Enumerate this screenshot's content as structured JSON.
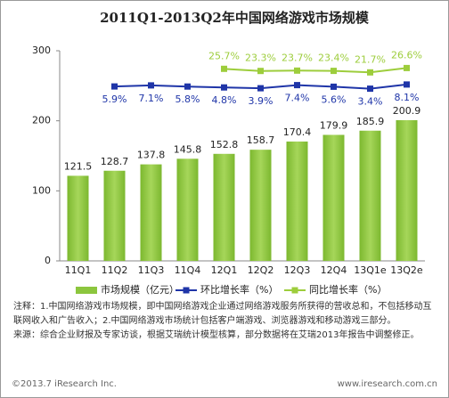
{
  "chart_data": {
    "type": "bar",
    "title": "2011Q1-2013Q2年中国网络游戏市场规模",
    "categories": [
      "11Q1",
      "11Q2",
      "11Q3",
      "11Q4",
      "12Q1",
      "12Q2",
      "12Q3",
      "12Q4",
      "13Q1e",
      "13Q2e"
    ],
    "series": [
      {
        "name": "市场规模（亿元）",
        "type": "bar",
        "color": "#8cc63e",
        "values": [
          121.5,
          128.7,
          137.8,
          145.8,
          152.8,
          158.7,
          170.4,
          179.9,
          185.9,
          200.9
        ]
      },
      {
        "name": "环比增长率（%）",
        "type": "line",
        "axis": "y2",
        "color": "#1f35a8",
        "values": [
          null,
          5.9,
          7.1,
          5.8,
          4.8,
          3.9,
          7.4,
          5.6,
          3.4,
          8.1
        ],
        "value_labels": [
          null,
          "5.9%",
          "7.1%",
          "5.8%",
          "4.8%",
          "3.9%",
          "7.4%",
          "5.6%",
          "3.4%",
          "8.1%"
        ]
      },
      {
        "name": "同比增长率（%）",
        "type": "line",
        "axis": "y2",
        "color": "#9dcd3c",
        "values": [
          null,
          null,
          null,
          null,
          25.7,
          23.3,
          23.7,
          23.4,
          21.7,
          26.6
        ],
        "value_labels": [
          null,
          null,
          null,
          null,
          "25.7%",
          "23.3%",
          "23.7%",
          "23.4%",
          "21.7%",
          "26.6%"
        ]
      }
    ],
    "ylim": [
      0,
      300
    ],
    "yticks": [
      0,
      100,
      200,
      300
    ],
    "y2lim": [
      -190,
      46
    ],
    "grid": false,
    "legend": "bottom",
    "notes": [
      "注释：1.中国网络游戏市场规模，即中国网络游戏企业通过网络游戏服务所获得的营收总和，不包括移动互联网收入和广告收入；2.中国网络游戏市场统计包括客户端游戏、浏览器游戏和移动游戏三部分。",
      "来源：综合企业财报及专家访谈，根据艾瑞统计模型核算，部分数据将在艾瑞2013年报告中调整修正。"
    ],
    "footer_left": "©2013.7 iResearch Inc.",
    "footer_right": "www.iresearch.com.cn"
  }
}
